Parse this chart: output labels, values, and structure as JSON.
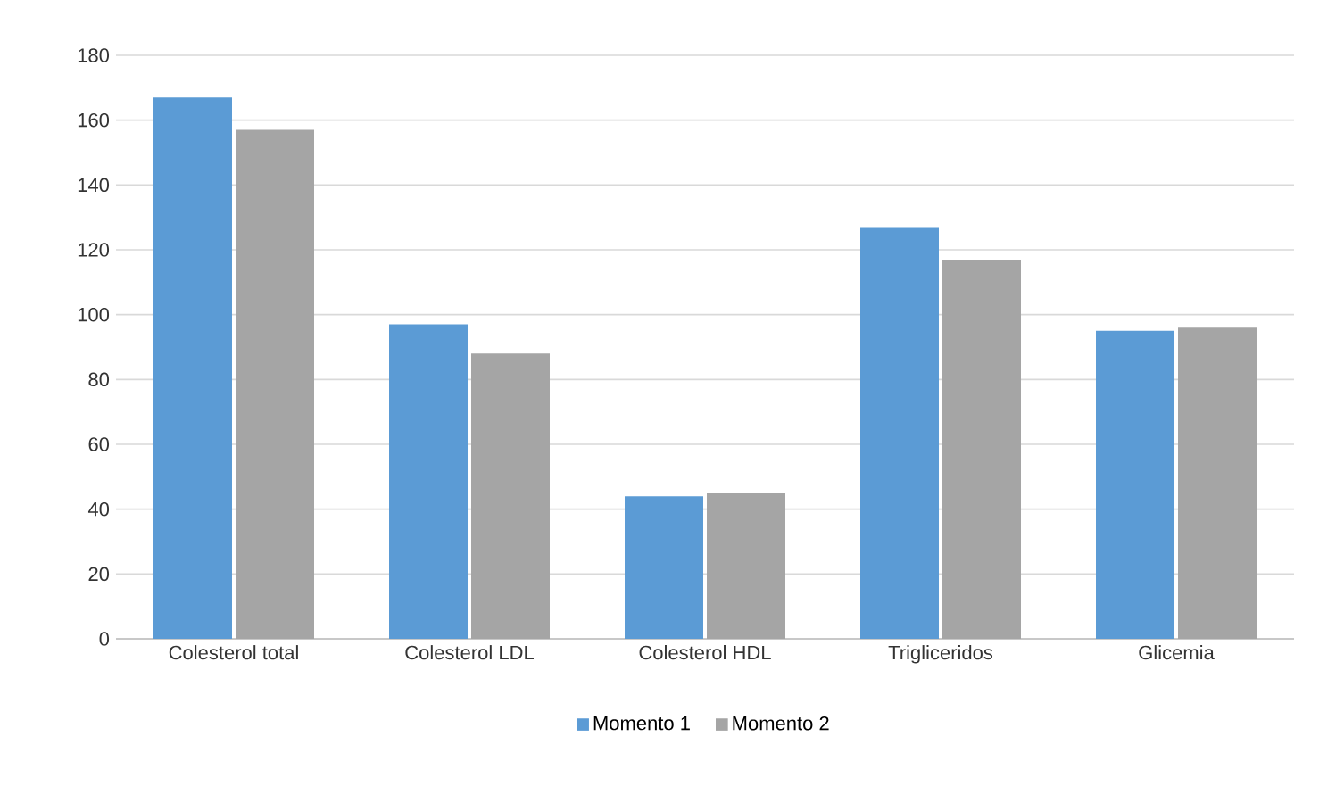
{
  "chart_data": {
    "type": "bar",
    "categories": [
      "Colesterol total",
      "Colesterol LDL",
      "Colesterol HDL",
      "Trigliceridos",
      "Glicemia"
    ],
    "series": [
      {
        "name": "Momento 1",
        "color": "#5b9bd5",
        "values": [
          167,
          97,
          44,
          127,
          95
        ]
      },
      {
        "name": "Momento 2",
        "color": "#a5a5a5",
        "values": [
          157,
          88,
          45,
          117,
          96
        ]
      }
    ],
    "ylim": [
      0,
      180
    ],
    "yticks": [
      0,
      20,
      40,
      60,
      80,
      100,
      120,
      140,
      160,
      180
    ],
    "grid": "y",
    "legend": "bottom"
  }
}
